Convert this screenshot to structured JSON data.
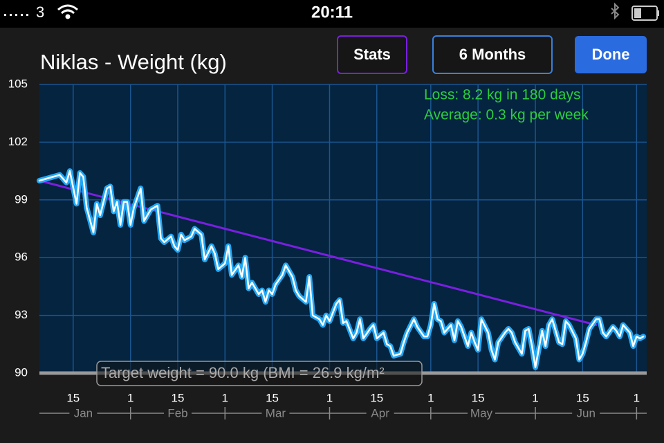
{
  "status_bar": {
    "carrier": "3",
    "time": "20:11"
  },
  "buttons": [
    "Stats",
    "6 Months",
    "Done"
  ],
  "chart_data": {
    "type": "line",
    "title": "Niklas - Weight (kg)",
    "annotations": [
      "Loss: 8.2 kg in 180 days",
      "Average: 0.3 kg per week"
    ],
    "target": {
      "value": 90.0,
      "label": "Target weight = 90.0 kg (BMI = 26.9 kg/m²"
    },
    "xlim": [
      5,
      185
    ],
    "ylim": [
      90,
      105
    ],
    "yticks": [
      90,
      93,
      96,
      99,
      102,
      105
    ],
    "xticks": [
      15,
      {
        "value": 32,
        "label": "1"
      },
      {
        "value": 46,
        "label": "15"
      },
      {
        "value": 60,
        "label": "1"
      },
      {
        "value": 74,
        "label": "15"
      },
      {
        "value": 91,
        "label": "1"
      },
      {
        "value": 105,
        "label": "15"
      },
      {
        "value": 121,
        "label": "1"
      },
      {
        "value": 135,
        "label": "15"
      },
      {
        "value": 152,
        "label": "1"
      },
      {
        "value": 166,
        "label": "15"
      },
      {
        "value": 182,
        "label": "1"
      }
    ],
    "month_labels": [
      {
        "value": 18,
        "label": "Jan"
      },
      {
        "value": 46,
        "label": "Feb"
      },
      {
        "value": 75,
        "label": "Mar"
      },
      {
        "value": 106,
        "label": "Apr"
      },
      {
        "value": 136,
        "label": "May"
      },
      {
        "value": 167,
        "label": "Jun"
      }
    ],
    "grid": true,
    "series": [
      {
        "color": "#22a8f5",
        "x": [
          5,
          11,
          13,
          14,
          16,
          17,
          18,
          19,
          21,
          22,
          23,
          25,
          26,
          27,
          28,
          29,
          30,
          31,
          32,
          33,
          35,
          36,
          37,
          38,
          40,
          41,
          42,
          44,
          45,
          46,
          47,
          48,
          50,
          51,
          53,
          54,
          56,
          57,
          58,
          60,
          61,
          62,
          64,
          65,
          66,
          67,
          68,
          70,
          71,
          72,
          73,
          74,
          75,
          77,
          78,
          80,
          81,
          82,
          84,
          85,
          86,
          88,
          89,
          90,
          91,
          93,
          94,
          95,
          96,
          98,
          99,
          100,
          101,
          103,
          104,
          105,
          107,
          108,
          109,
          110,
          112,
          113,
          114,
          116,
          117,
          119,
          120,
          121,
          122,
          123,
          124,
          125,
          127,
          128,
          129,
          130,
          132,
          133,
          134,
          135,
          136,
          138,
          139,
          140,
          141,
          143,
          144,
          145,
          146,
          148,
          149,
          150,
          151,
          152,
          154,
          155,
          156,
          157,
          159,
          160,
          161,
          162,
          164,
          165,
          166,
          167,
          168,
          170,
          171,
          172,
          173,
          175,
          176,
          177,
          178,
          180,
          181,
          182,
          183,
          184
        ],
        "values": [
          100.0,
          100.3,
          99.9,
          100.5,
          98.8,
          100.4,
          100.2,
          98.6,
          97.3,
          98.8,
          98.2,
          99.6,
          99.7,
          98.4,
          98.9,
          97.7,
          98.9,
          98.9,
          97.7,
          98.6,
          99.6,
          97.9,
          98.2,
          98.5,
          98.7,
          97.0,
          96.8,
          97.1,
          96.6,
          96.4,
          97.2,
          96.9,
          97.1,
          97.5,
          97.2,
          95.9,
          96.6,
          96.2,
          95.4,
          95.7,
          96.6,
          95.1,
          95.6,
          95.0,
          96.0,
          94.4,
          94.7,
          94.1,
          94.3,
          93.7,
          94.3,
          94.1,
          94.6,
          95.1,
          95.6,
          95.0,
          94.3,
          94.0,
          93.7,
          95.0,
          93.0,
          92.8,
          92.5,
          93.0,
          92.7,
          93.6,
          93.8,
          92.6,
          92.7,
          91.8,
          92.1,
          92.8,
          91.8,
          92.3,
          92.5,
          91.8,
          92.1,
          91.5,
          91.4,
          90.9,
          91.0,
          91.6,
          92.1,
          92.8,
          92.4,
          91.9,
          91.9,
          92.5,
          93.6,
          92.8,
          92.7,
          92.1,
          92.5,
          91.7,
          92.7,
          92.4,
          91.4,
          92.1,
          91.6,
          91.2,
          92.8,
          92.1,
          91.2,
          90.7,
          91.6,
          92.1,
          92.3,
          92.1,
          91.6,
          91.0,
          92.2,
          92.3,
          91.4,
          90.3,
          92.2,
          91.4,
          92.5,
          92.8,
          91.6,
          91.5,
          92.7,
          92.5,
          91.8,
          90.7,
          91.0,
          91.6,
          92.3,
          92.8,
          92.8,
          92.1,
          91.9,
          92.4,
          92.2,
          91.9,
          92.5,
          92.1,
          91.4,
          91.9,
          91.8,
          91.9
        ]
      },
      {
        "color": "#7a1fe0",
        "x": [
          5,
          170
        ],
        "values": [
          100.0,
          92.5
        ]
      }
    ]
  }
}
